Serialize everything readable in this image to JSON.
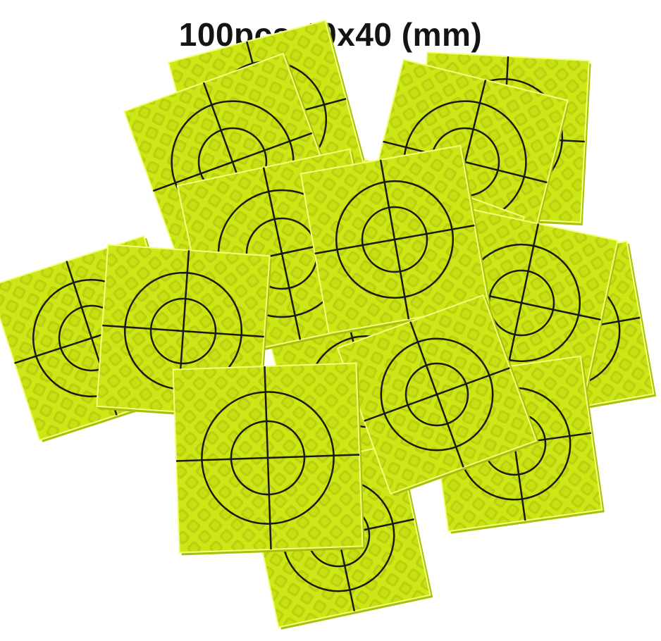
{
  "title": "100pcs 40x40 (mm)",
  "photo": {
    "subject": "reflective-target-sheets",
    "colors": {
      "sheet": "#d9f21a",
      "sheet_dark": "#a8c00c",
      "pattern": "#f2ff7a",
      "target_lines": "#1a1a10",
      "background": "#ffffff"
    }
  }
}
